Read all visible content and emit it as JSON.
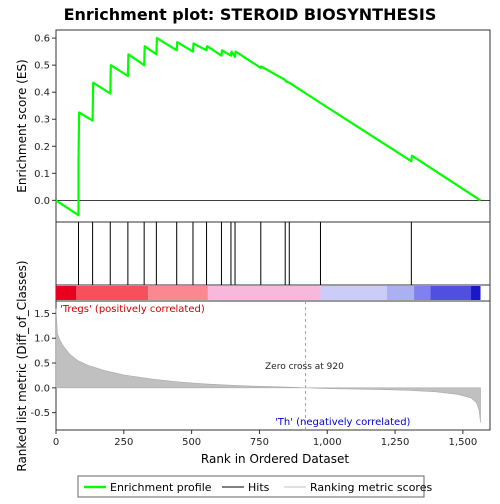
{
  "chart_data": {
    "type": "line",
    "title": "Enrichment plot: STEROID BIOSYNTHESIS",
    "ylabel_top": "Enrichment score (ES)",
    "ylabel_bottom": "Ranked list metric (Diff_of_Classes)",
    "xlabel": "Rank in Ordered Dataset",
    "xlim": [
      0,
      1600
    ],
    "es_ylim": [
      -0.08,
      0.63
    ],
    "metric_ylim": [
      -0.85,
      1.75
    ],
    "es_yticks": [
      0.0,
      0.1,
      0.2,
      0.3,
      0.4,
      0.5,
      0.6
    ],
    "es_ytick_labels": [
      "0.0",
      "0.1",
      "0.2",
      "0.3",
      "0.4",
      "0.5",
      "0.6"
    ],
    "metric_yticks": [
      -0.5,
      0.0,
      0.5,
      1.0,
      1.5
    ],
    "metric_ytick_labels": [
      "-0.5",
      "0.0",
      "0.5",
      "1.0",
      "1.5"
    ],
    "xticks": [
      0,
      250,
      500,
      750,
      1000,
      1250,
      1500
    ],
    "xtick_labels": [
      "0",
      "250",
      "500",
      "750",
      "1,000",
      "1,250",
      "1,500"
    ],
    "enrichment_profile": [
      [
        0,
        0.0
      ],
      [
        83,
        -0.055
      ],
      [
        83,
        0.14
      ],
      [
        85,
        0.325
      ],
      [
        135,
        0.295
      ],
      [
        137,
        0.435
      ],
      [
        200,
        0.395
      ],
      [
        202,
        0.5
      ],
      [
        265,
        0.46
      ],
      [
        267,
        0.54
      ],
      [
        325,
        0.5
      ],
      [
        327,
        0.57
      ],
      [
        370,
        0.54
      ],
      [
        372,
        0.6
      ],
      [
        445,
        0.555
      ],
      [
        447,
        0.585
      ],
      [
        505,
        0.55
      ],
      [
        507,
        0.58
      ],
      [
        555,
        0.555
      ],
      [
        557,
        0.57
      ],
      [
        610,
        0.535
      ],
      [
        612,
        0.555
      ],
      [
        645,
        0.535
      ],
      [
        647,
        0.55
      ],
      [
        660,
        0.53
      ],
      [
        662,
        0.55
      ],
      [
        755,
        0.49
      ],
      [
        757,
        0.495
      ],
      [
        845,
        0.445
      ],
      [
        847,
        0.44
      ],
      [
        860,
        0.435
      ],
      [
        975,
        0.36
      ],
      [
        1310,
        0.145
      ],
      [
        1312,
        0.165
      ],
      [
        1565,
        0.0
      ]
    ],
    "hits": [
      83,
      135,
      200,
      265,
      325,
      370,
      445,
      505,
      555,
      610,
      645,
      660,
      755,
      845,
      860,
      975,
      1310
    ],
    "metric_curve": [
      [
        0,
        1.6
      ],
      [
        5,
        1.1
      ],
      [
        15,
        0.95
      ],
      [
        30,
        0.82
      ],
      [
        50,
        0.68
      ],
      [
        80,
        0.55
      ],
      [
        120,
        0.45
      ],
      [
        180,
        0.35
      ],
      [
        250,
        0.26
      ],
      [
        350,
        0.18
      ],
      [
        450,
        0.12
      ],
      [
        550,
        0.08
      ],
      [
        650,
        0.05
      ],
      [
        750,
        0.03
      ],
      [
        850,
        0.015
      ],
      [
        920,
        0.0
      ],
      [
        1000,
        -0.015
      ],
      [
        1100,
        -0.025
      ],
      [
        1200,
        -0.035
      ],
      [
        1300,
        -0.05
      ],
      [
        1400,
        -0.08
      ],
      [
        1480,
        -0.13
      ],
      [
        1530,
        -0.2
      ],
      [
        1550,
        -0.3
      ],
      [
        1560,
        -0.45
      ],
      [
        1565,
        -0.7
      ]
    ],
    "zero_cross_rank": 920,
    "zero_cross_label": "Zero cross at 920",
    "positive_label": "'Tregs' (positively correlated)",
    "negative_label": "'Th' (negatively correlated)",
    "legend": {
      "enrichment_profile": "Enrichment profile",
      "hits": "Hits",
      "ranking_metric": "Ranking metric scores"
    },
    "colors": {
      "profile": "#00ff00",
      "hits": "#000000",
      "metric_fill": "#c0c0c0",
      "positive_text": "#cc0000",
      "negative_text": "#0000cc",
      "zero_cross_line": "#a0a0a0"
    },
    "heat_segments": [
      {
        "from": 0,
        "to": 75,
        "color": "#e8001e"
      },
      {
        "from": 75,
        "to": 340,
        "color": "#f7505a"
      },
      {
        "from": 340,
        "to": 560,
        "color": "#fa8890"
      },
      {
        "from": 560,
        "to": 975,
        "color": "#f8b8dc"
      },
      {
        "from": 975,
        "to": 1220,
        "color": "#ccccf8"
      },
      {
        "from": 1220,
        "to": 1320,
        "color": "#aab0f0"
      },
      {
        "from": 1320,
        "to": 1380,
        "color": "#8080f0"
      },
      {
        "from": 1380,
        "to": 1530,
        "color": "#5050e0"
      },
      {
        "from": 1530,
        "to": 1565,
        "color": "#1818c8"
      }
    ]
  }
}
